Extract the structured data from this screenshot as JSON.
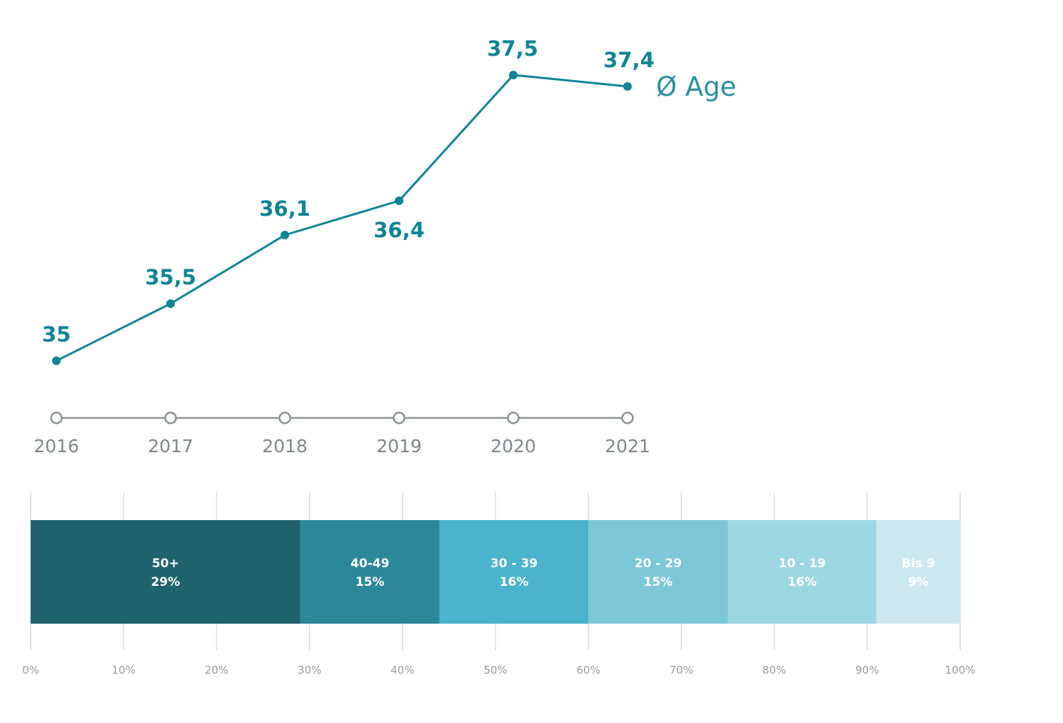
{
  "chart_data": [
    {
      "type": "line",
      "categories": [
        "2016",
        "2017",
        "2018",
        "2019",
        "2020",
        "2021"
      ],
      "series": [
        {
          "name": "Ø Age",
          "values": [
            35,
            35.5,
            36.1,
            36.4,
            37.5,
            37.4
          ],
          "value_labels": [
            "35",
            "35,5",
            "36,1",
            "36,4",
            "37,5",
            "37,4"
          ]
        }
      ],
      "ylim": [
        34.7,
        37.75
      ],
      "grid": false,
      "colors": {
        "series": "#0e8596",
        "axis": "#8a9295",
        "axis_text": "#7e878b"
      }
    },
    {
      "type": "bar",
      "orientation": "horizontal-stacked",
      "segments": [
        {
          "label": "50+",
          "value": 29,
          "value_label": "29%",
          "color": "#20636e"
        },
        {
          "label": "40-49",
          "value": 15,
          "value_label": "15%",
          "color": "#2c8899"
        },
        {
          "label": "30 - 39",
          "value": 16,
          "value_label": "16%",
          "color": "#4bb3cb"
        },
        {
          "label": "20 - 29",
          "value": 15,
          "value_label": "15%",
          "color": "#7cc8d8"
        },
        {
          "label": "10 - 19",
          "value": 16,
          "value_label": "16%",
          "color": "#9dd7e3"
        },
        {
          "label": "Bis 9",
          "value": 9,
          "value_label": "9%",
          "color": "#cde9f0"
        }
      ],
      "xticks": [
        "0%",
        "10%",
        "20%",
        "30%",
        "40%",
        "50%",
        "60%",
        "70%",
        "80%",
        "90%",
        "100%"
      ],
      "xlim": [
        0,
        100
      ],
      "grid": true,
      "colors": {
        "grid": "#dcdcdc",
        "tick_text": "#9a9a9a"
      }
    }
  ]
}
